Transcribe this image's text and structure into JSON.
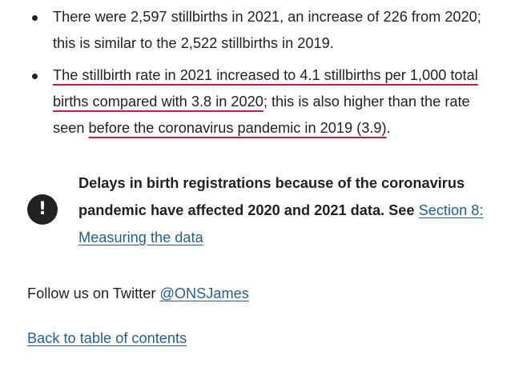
{
  "bullets": [
    {
      "line1": "There were 2,597 stillbirths in 2021, an increase of 226 from 2020;",
      "line2": "this is similar to the 2,522 stillbirths in 2019."
    },
    {
      "line1_hl": "The stillbirth rate in 2021 increased to 4.1 stillbirths per 1,000 total",
      "line2_hl": "births compared with 3.8 in 2020",
      "line2_rest": "; this is also higher than the rate",
      "line3_pre": "seen ",
      "line3_hl": "before the coronavirus pandemic in 2019 (3.9)",
      "line3_post": "."
    }
  ],
  "callout": {
    "icon": "exclamation-icon",
    "icon_glyph": "!",
    "bold_line1": "Delays in birth registrations because of the coronavirus",
    "bold_line2": "pandemic have affected 2020 and 2021 data. See ",
    "link_part1": "Section 8:",
    "link_part2": "Measuring the data"
  },
  "follow": {
    "prefix": "Follow us on Twitter ",
    "handle": "@ONSJames"
  },
  "back_link": "Back to table of contents",
  "colors": {
    "text": "#222222",
    "link": "#206095",
    "highlight_underline": "#e0123c"
  }
}
